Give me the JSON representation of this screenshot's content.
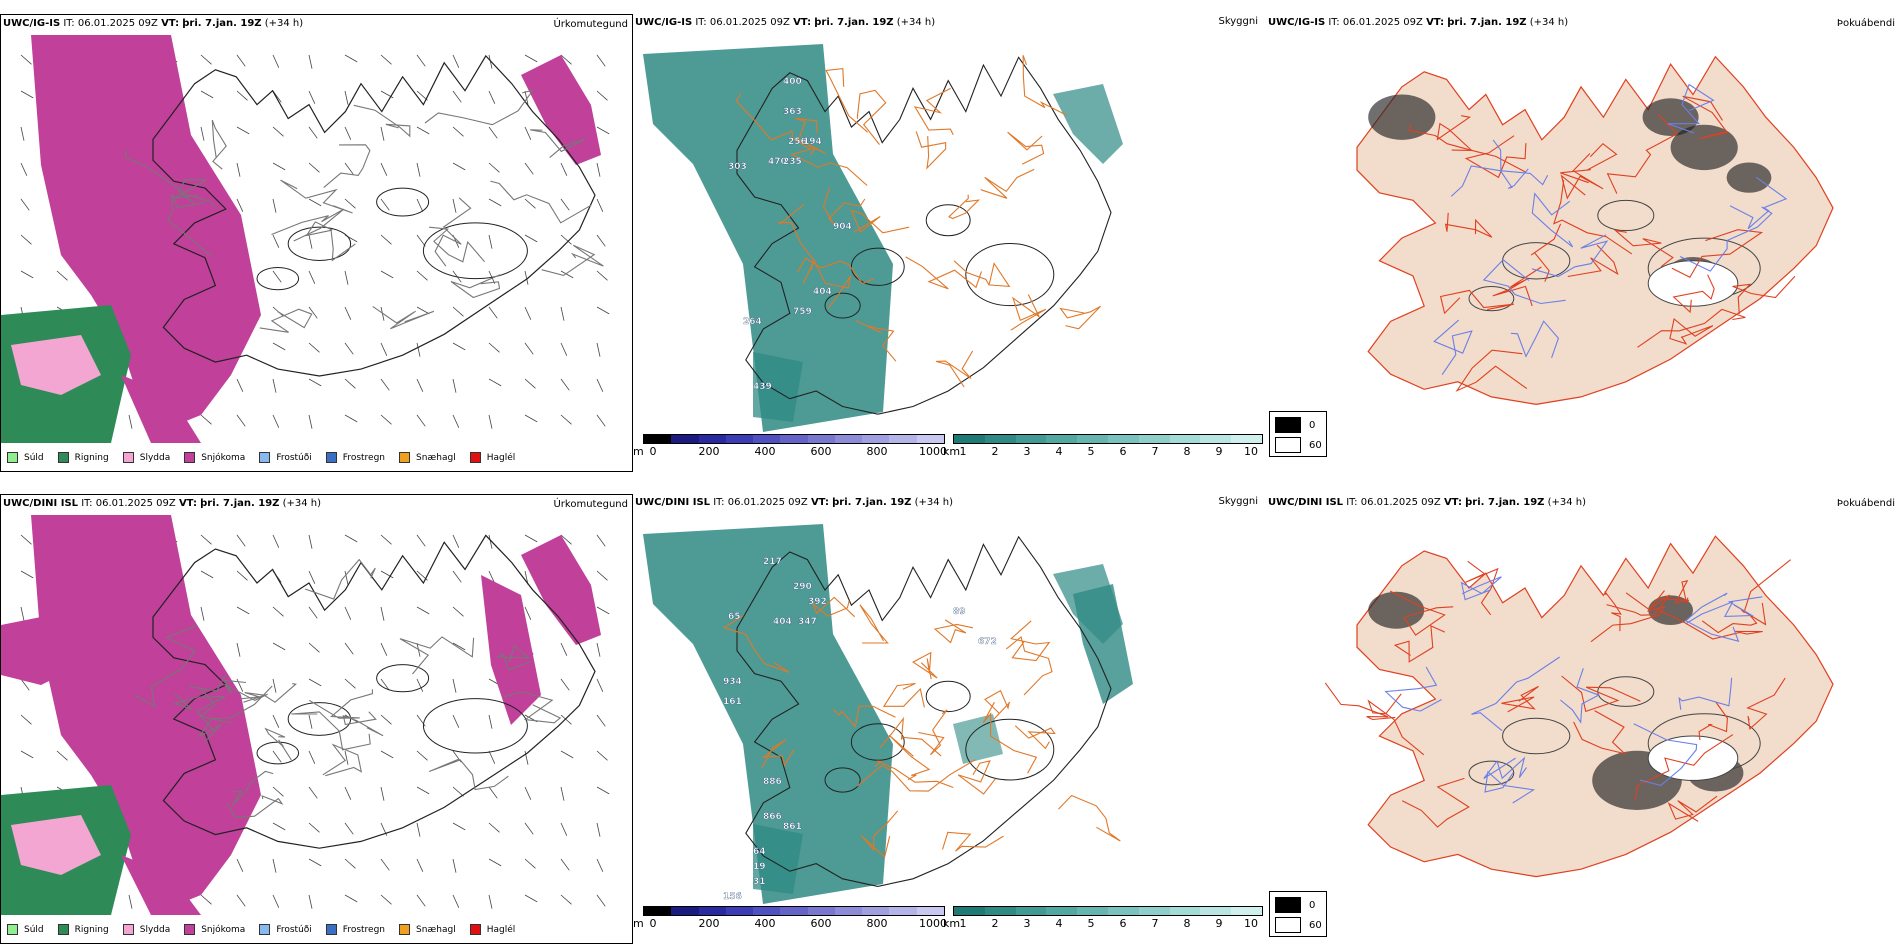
{
  "rows": [
    {
      "model": "UWC/IG-IS",
      "it_label": "IT:",
      "it_value": "06.01.2025 09Z",
      "vt_label": "VT:",
      "vt_value": "þri. 7.jan. 19Z",
      "lead": "(+34 h)"
    },
    {
      "model": "UWC/DINI ISL",
      "it_label": "IT:",
      "it_value": "06.01.2025 09Z",
      "vt_label": "VT:",
      "vt_value": "þri. 7.jan. 19Z",
      "lead": "(+34 h)"
    }
  ],
  "panel_titles": {
    "precip": "Úrkomutegund",
    "visibility": "Skyggni",
    "fog": "Þokuábendi"
  },
  "precip_legend": [
    {
      "label": "Súld",
      "color": "#90ee90"
    },
    {
      "label": "Rigning",
      "color": "#2e8b57"
    },
    {
      "label": "Slydda",
      "color": "#f4a6d2"
    },
    {
      "label": "Snjókoma",
      "color": "#c0409a"
    },
    {
      "label": "Frostúði",
      "color": "#87b9f0"
    },
    {
      "label": "Frostregn",
      "color": "#3a6fc4"
    },
    {
      "label": "Snæhagl",
      "color": "#f0a020"
    },
    {
      "label": "Haglél",
      "color": "#e01010"
    }
  ],
  "elevation_bar": {
    "unit": "m",
    "ticks": [
      "0",
      "200",
      "400",
      "600",
      "800",
      "1000"
    ],
    "colors": [
      "#000000",
      "#1a1a80",
      "#2a2aa0",
      "#3c3cb4",
      "#5050c0",
      "#6464c8",
      "#7878d0",
      "#8c8cd8",
      "#a0a0e0",
      "#b4b4e8",
      "#c8c8f0"
    ]
  },
  "cloud_base_bar": {
    "unit": "km",
    "ticks": [
      "1",
      "2",
      "3",
      "4",
      "5",
      "6",
      "7",
      "8",
      "9",
      "10"
    ],
    "colors": [
      "#1e7a74",
      "#2f8a84",
      "#419a94",
      "#53a8a2",
      "#66b5b0",
      "#7ac2bd",
      "#8ecfca",
      "#a3dbd7",
      "#b9e6e3",
      "#d0f0ee"
    ]
  },
  "fog_key": {
    "min_label": "0",
    "max_label": "60",
    "min_color": "#000000",
    "max_color": "#ffffff"
  },
  "station_values": {
    "row1": [
      "400",
      "363",
      "256",
      "194",
      "470",
      "235",
      "303",
      "904",
      "404",
      "759",
      "439",
      "264"
    ],
    "row2": [
      "217",
      "290",
      "392",
      "347",
      "404",
      "65",
      "934",
      "161",
      "89",
      "672",
      "886",
      "866",
      "861",
      "64",
      "19",
      "31",
      "156"
    ]
  },
  "colors": {
    "snow": "#c0409a",
    "rain": "#2e8b57",
    "sleet": "#f4a6d2",
    "teal": "#2f8a84",
    "road_orange": "#e07828",
    "road_red": "#e04020",
    "land": "#f2dccb",
    "river": "#6a80e8"
  }
}
